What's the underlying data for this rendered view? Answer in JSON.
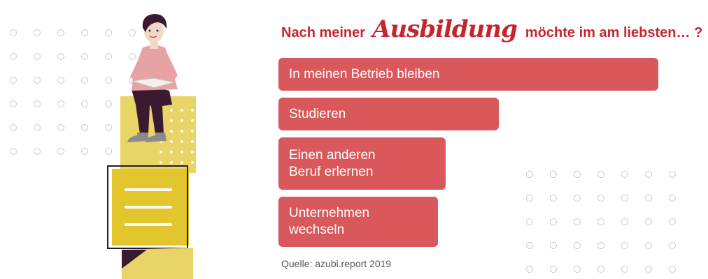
{
  "title": {
    "prefix": "Nach meiner",
    "highlight": "Ausbildung",
    "suffix": "möchte im am liebsten… ?"
  },
  "chart_data": {
    "type": "bar",
    "orientation": "horizontal",
    "categories": [
      "In meinen Betrieb bleiben",
      "Studieren",
      "Einen anderen\nBeruf erlernen",
      "Unternehmen\nwechseln"
    ],
    "values": [
      100,
      58,
      44,
      42
    ],
    "value_unit": "relative bar length, no values printed",
    "bar_color": "#d9585c",
    "source": "Quelle: azubi.report 2019"
  },
  "colors": {
    "title": "#c4262e",
    "bar": "#d9585c",
    "box_yellow": "#ead24a",
    "sweater": "#e7999b",
    "pants": "#3a1a30"
  }
}
